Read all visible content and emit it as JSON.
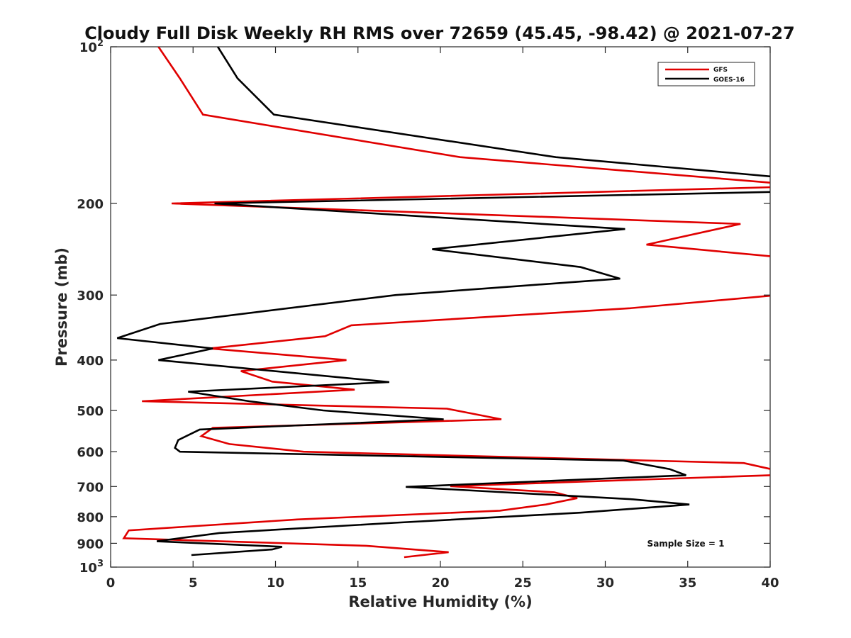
{
  "chart_data": {
    "type": "line",
    "title": "Cloudy Full Disk Weekly RH RMS over 72659 (45.45, -98.42) @ 2021-07-27",
    "xlabel": "Relative Humidity (%)",
    "ylabel": "Pressure (mb)",
    "xlim": [
      0,
      40
    ],
    "ylim": [
      100,
      1000
    ],
    "y_scale": "log",
    "y_reversed": true,
    "x_ticks": [
      0,
      5,
      10,
      15,
      20,
      25,
      30,
      35,
      40
    ],
    "y_ticks": [
      {
        "value": 100,
        "label": "10",
        "sup": "2"
      },
      {
        "value": 200,
        "label": "200"
      },
      {
        "value": 300,
        "label": "300"
      },
      {
        "value": 400,
        "label": "400"
      },
      {
        "value": 500,
        "label": "500"
      },
      {
        "value": 600,
        "label": "600"
      },
      {
        "value": 700,
        "label": "700"
      },
      {
        "value": 800,
        "label": "800"
      },
      {
        "value": 900,
        "label": "900"
      },
      {
        "value": 1000,
        "label": "10",
        "sup": "3"
      }
    ],
    "grid": false,
    "legend_position": "top-right",
    "annotation": "Sample Size = 1",
    "series": [
      {
        "name": "GFS",
        "color": "#e00000",
        "points": [
          [
            2.9,
            100
          ],
          [
            4.2,
            115
          ],
          [
            5.6,
            135
          ],
          [
            21.2,
            163
          ],
          [
            40.5,
            183
          ],
          [
            40.5,
            186
          ],
          [
            3.7,
            200
          ],
          [
            38.2,
            219
          ],
          [
            32.5,
            240
          ],
          [
            40.2,
            253
          ],
          [
            40.5,
            300
          ],
          [
            31.5,
            318
          ],
          [
            14.6,
            343
          ],
          [
            13.0,
            360
          ],
          [
            6.0,
            380
          ],
          [
            14.3,
            400
          ],
          [
            7.9,
            420
          ],
          [
            9.8,
            440
          ],
          [
            14.8,
            456
          ],
          [
            1.9,
            480
          ],
          [
            20.4,
            496
          ],
          [
            23.7,
            520
          ],
          [
            6.2,
            540
          ],
          [
            5.5,
            560
          ],
          [
            7.2,
            580
          ],
          [
            11.7,
            600
          ],
          [
            38.4,
            631
          ],
          [
            40.5,
            653
          ],
          [
            40.5,
            665
          ],
          [
            20.6,
            699
          ],
          [
            26.9,
            718
          ],
          [
            28.3,
            737
          ],
          [
            26.4,
            758
          ],
          [
            23.6,
            779
          ],
          [
            11.3,
            810
          ],
          [
            1.1,
            850
          ],
          [
            0.8,
            880
          ],
          [
            15.5,
            910
          ],
          [
            20.5,
            936
          ],
          [
            17.8,
            957
          ]
        ]
      },
      {
        "name": "GOES-16",
        "color": "#000000",
        "points": [
          [
            6.5,
            100
          ],
          [
            7.7,
            115
          ],
          [
            9.9,
            135
          ],
          [
            27.0,
            163
          ],
          [
            40.5,
            178
          ],
          [
            40.5,
            190
          ],
          [
            6.3,
            200
          ],
          [
            31.2,
            224
          ],
          [
            19.5,
            245
          ],
          [
            28.5,
            265
          ],
          [
            30.9,
            279
          ],
          [
            17.3,
            300
          ],
          [
            3.0,
            341
          ],
          [
            0.4,
            363
          ],
          [
            6.2,
            380
          ],
          [
            2.9,
            400
          ],
          [
            16.9,
            441
          ],
          [
            4.7,
            460
          ],
          [
            8.4,
            480
          ],
          [
            12.9,
            500
          ],
          [
            20.2,
            520
          ],
          [
            5.4,
            544
          ],
          [
            4.1,
            570
          ],
          [
            3.9,
            590
          ],
          [
            4.2,
            600
          ],
          [
            31.1,
            624
          ],
          [
            33.9,
            648
          ],
          [
            34.9,
            666
          ],
          [
            17.9,
            701
          ],
          [
            31.7,
            741
          ],
          [
            35.1,
            758
          ],
          [
            28.5,
            786
          ],
          [
            17.2,
            822
          ],
          [
            6.6,
            860
          ],
          [
            2.8,
            892
          ],
          [
            10.4,
            914
          ],
          [
            9.8,
            925
          ],
          [
            4.9,
            948
          ]
        ]
      }
    ]
  }
}
